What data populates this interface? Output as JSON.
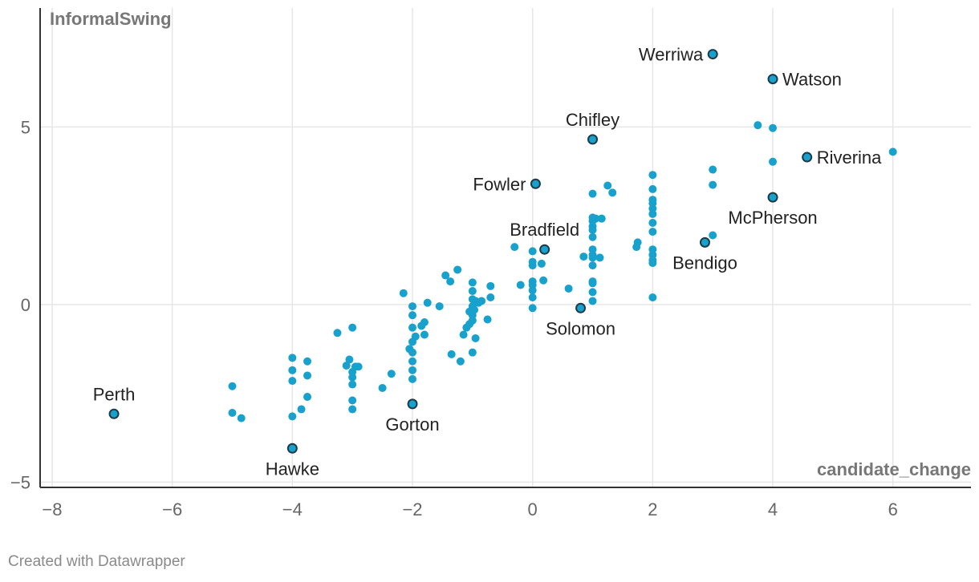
{
  "chart_data": {
    "type": "scatter",
    "xlabel": "candidate_change",
    "ylabel": "InformalSwing",
    "xlim": [
      -8.2,
      7.3
    ],
    "ylim": [
      -5.15,
      8.35
    ],
    "x_ticks": [
      -8,
      -6,
      -4,
      -2,
      0,
      2,
      4,
      6
    ],
    "x_tick_labels": [
      "−8",
      "−6",
      "−4",
      "−2",
      "0",
      "2",
      "4",
      "6"
    ],
    "y_ticks": [
      -5,
      0,
      5
    ],
    "y_tick_labels": [
      "−5",
      "0",
      "5"
    ],
    "grid": true,
    "colors": {
      "point": "#18a1cd",
      "highlight": "#18a1cd",
      "outline": "#1d3a47"
    },
    "labeled_points": [
      {
        "name": "Werriwa",
        "x": 3,
        "y": 7.05,
        "label_pos": "left"
      },
      {
        "name": "Watson",
        "x": 4,
        "y": 6.35,
        "label_pos": "right"
      },
      {
        "name": "Chifley",
        "x": 1,
        "y": 4.65,
        "label_pos": "top"
      },
      {
        "name": "Riverina",
        "x": 4.57,
        "y": 4.15,
        "label_pos": "right"
      },
      {
        "name": "Fowler",
        "x": 0.05,
        "y": 3.4,
        "label_pos": "left"
      },
      {
        "name": "McPherson",
        "x": 4,
        "y": 3.02,
        "label_pos": "bottom"
      },
      {
        "name": "Bradfield",
        "x": 0.2,
        "y": 1.55,
        "label_pos": "top"
      },
      {
        "name": "Bendigo",
        "x": 2.87,
        "y": 1.75,
        "label_pos": "bottom"
      },
      {
        "name": "Solomon",
        "x": 0.8,
        "y": -0.1,
        "label_pos": "bottom"
      },
      {
        "name": "Gorton",
        "x": -2,
        "y": -2.8,
        "label_pos": "bottom"
      },
      {
        "name": "Perth",
        "x": -6.97,
        "y": -3.08,
        "label_pos": "top"
      },
      {
        "name": "Hawke",
        "x": -4,
        "y": -4.05,
        "label_pos": "bottom"
      }
    ],
    "points": [
      [
        3.75,
        5.05
      ],
      [
        4,
        4.97
      ],
      [
        6,
        4.3
      ],
      [
        4,
        4.02
      ],
      [
        3,
        3.8
      ],
      [
        3,
        3.37
      ],
      [
        2,
        3.65
      ],
      [
        2,
        3.25
      ],
      [
        2,
        2.95
      ],
      [
        2,
        2.85
      ],
      [
        2,
        2.7
      ],
      [
        2,
        2.55
      ],
      [
        2,
        2.3
      ],
      [
        2,
        2.05
      ],
      [
        1.25,
        3.35
      ],
      [
        1.33,
        3.15
      ],
      [
        1,
        3.12
      ],
      [
        1,
        2.45
      ],
      [
        1,
        2.35
      ],
      [
        1.05,
        2.42
      ],
      [
        1.15,
        2.42
      ],
      [
        1,
        2.2
      ],
      [
        1,
        2.1
      ],
      [
        1,
        1.9
      ],
      [
        1.75,
        1.75
      ],
      [
        1.73,
        1.62
      ],
      [
        2,
        1.55
      ],
      [
        2,
        1.4
      ],
      [
        2,
        1.25
      ],
      [
        2,
        1.17
      ],
      [
        3,
        1.95
      ],
      [
        2,
        0.2
      ],
      [
        1,
        1.55
      ],
      [
        1,
        1.4
      ],
      [
        1,
        1.32
      ],
      [
        0.85,
        1.35
      ],
      [
        1.12,
        1.32
      ],
      [
        1,
        1.1
      ],
      [
        1,
        0.65
      ],
      [
        1,
        0.6
      ],
      [
        1,
        0.35
      ],
      [
        1,
        0.1
      ],
      [
        0.6,
        0.45
      ],
      [
        -0.3,
        1.62
      ],
      [
        0,
        1.5
      ],
      [
        0,
        1.2
      ],
      [
        0,
        1.1
      ],
      [
        0.15,
        1.15
      ],
      [
        0,
        0.65
      ],
      [
        0,
        0.55
      ],
      [
        0,
        0.4
      ],
      [
        0,
        0.2
      ],
      [
        0,
        -0.1
      ],
      [
        -0.2,
        0.55
      ],
      [
        0.18,
        0.68
      ],
      [
        -1.25,
        0.98
      ],
      [
        -1.45,
        0.82
      ],
      [
        -1.37,
        0.65
      ],
      [
        -1,
        0.62
      ],
      [
        -0.7,
        0.52
      ],
      [
        -1,
        0.38
      ],
      [
        -0.7,
        0.2
      ],
      [
        -1,
        0.15
      ],
      [
        -0.95,
        0.1
      ],
      [
        -0.9,
        0.05
      ],
      [
        -0.85,
        0.1
      ],
      [
        -1,
        -0.05
      ],
      [
        -1.05,
        -0.2
      ],
      [
        -1,
        -0.3
      ],
      [
        -0.97,
        -0.15
      ],
      [
        -1,
        -0.45
      ],
      [
        -1.05,
        -0.55
      ],
      [
        -1.1,
        -0.65
      ],
      [
        -0.75,
        -0.42
      ],
      [
        -1.15,
        -0.85
      ],
      [
        -0.95,
        -0.95
      ],
      [
        -1,
        -1.35
      ],
      [
        -1.35,
        -1.4
      ],
      [
        -1.2,
        -1.6
      ],
      [
        -2.15,
        0.32
      ],
      [
        -2,
        -0.05
      ],
      [
        -1.75,
        0.05
      ],
      [
        -1.55,
        -0.05
      ],
      [
        -2,
        -0.3
      ],
      [
        -1.8,
        -0.5
      ],
      [
        -1.85,
        -0.6
      ],
      [
        -2,
        -0.65
      ],
      [
        -1.95,
        -0.9
      ],
      [
        -1.8,
        -0.85
      ],
      [
        -2,
        -1.05
      ],
      [
        -2.05,
        -1.25
      ],
      [
        -2,
        -1.35
      ],
      [
        -2,
        -1.6
      ],
      [
        -2,
        -1.85
      ],
      [
        -2,
        -2.1
      ],
      [
        -2.35,
        -1.95
      ],
      [
        -2.5,
        -2.35
      ],
      [
        -3.25,
        -0.8
      ],
      [
        -3,
        -0.65
      ],
      [
        -3.05,
        -1.55
      ],
      [
        -3.1,
        -1.72
      ],
      [
        -2.95,
        -1.75
      ],
      [
        -2.9,
        -1.75
      ],
      [
        -3,
        -1.9
      ],
      [
        -3,
        -2.05
      ],
      [
        -3,
        -2.25
      ],
      [
        -3,
        -2.7
      ],
      [
        -3,
        -2.95
      ],
      [
        -3.75,
        -1.6
      ],
      [
        -4,
        -1.5
      ],
      [
        -4,
        -1.85
      ],
      [
        -3.75,
        -2.0
      ],
      [
        -4,
        -2.15
      ],
      [
        -3.75,
        -2.6
      ],
      [
        -3.85,
        -2.95
      ],
      [
        -4,
        -3.15
      ],
      [
        -5,
        -2.3
      ],
      [
        -5,
        -3.05
      ],
      [
        -4.85,
        -3.2
      ]
    ]
  },
  "footer": {
    "credit": "Created with Datawrapper"
  }
}
